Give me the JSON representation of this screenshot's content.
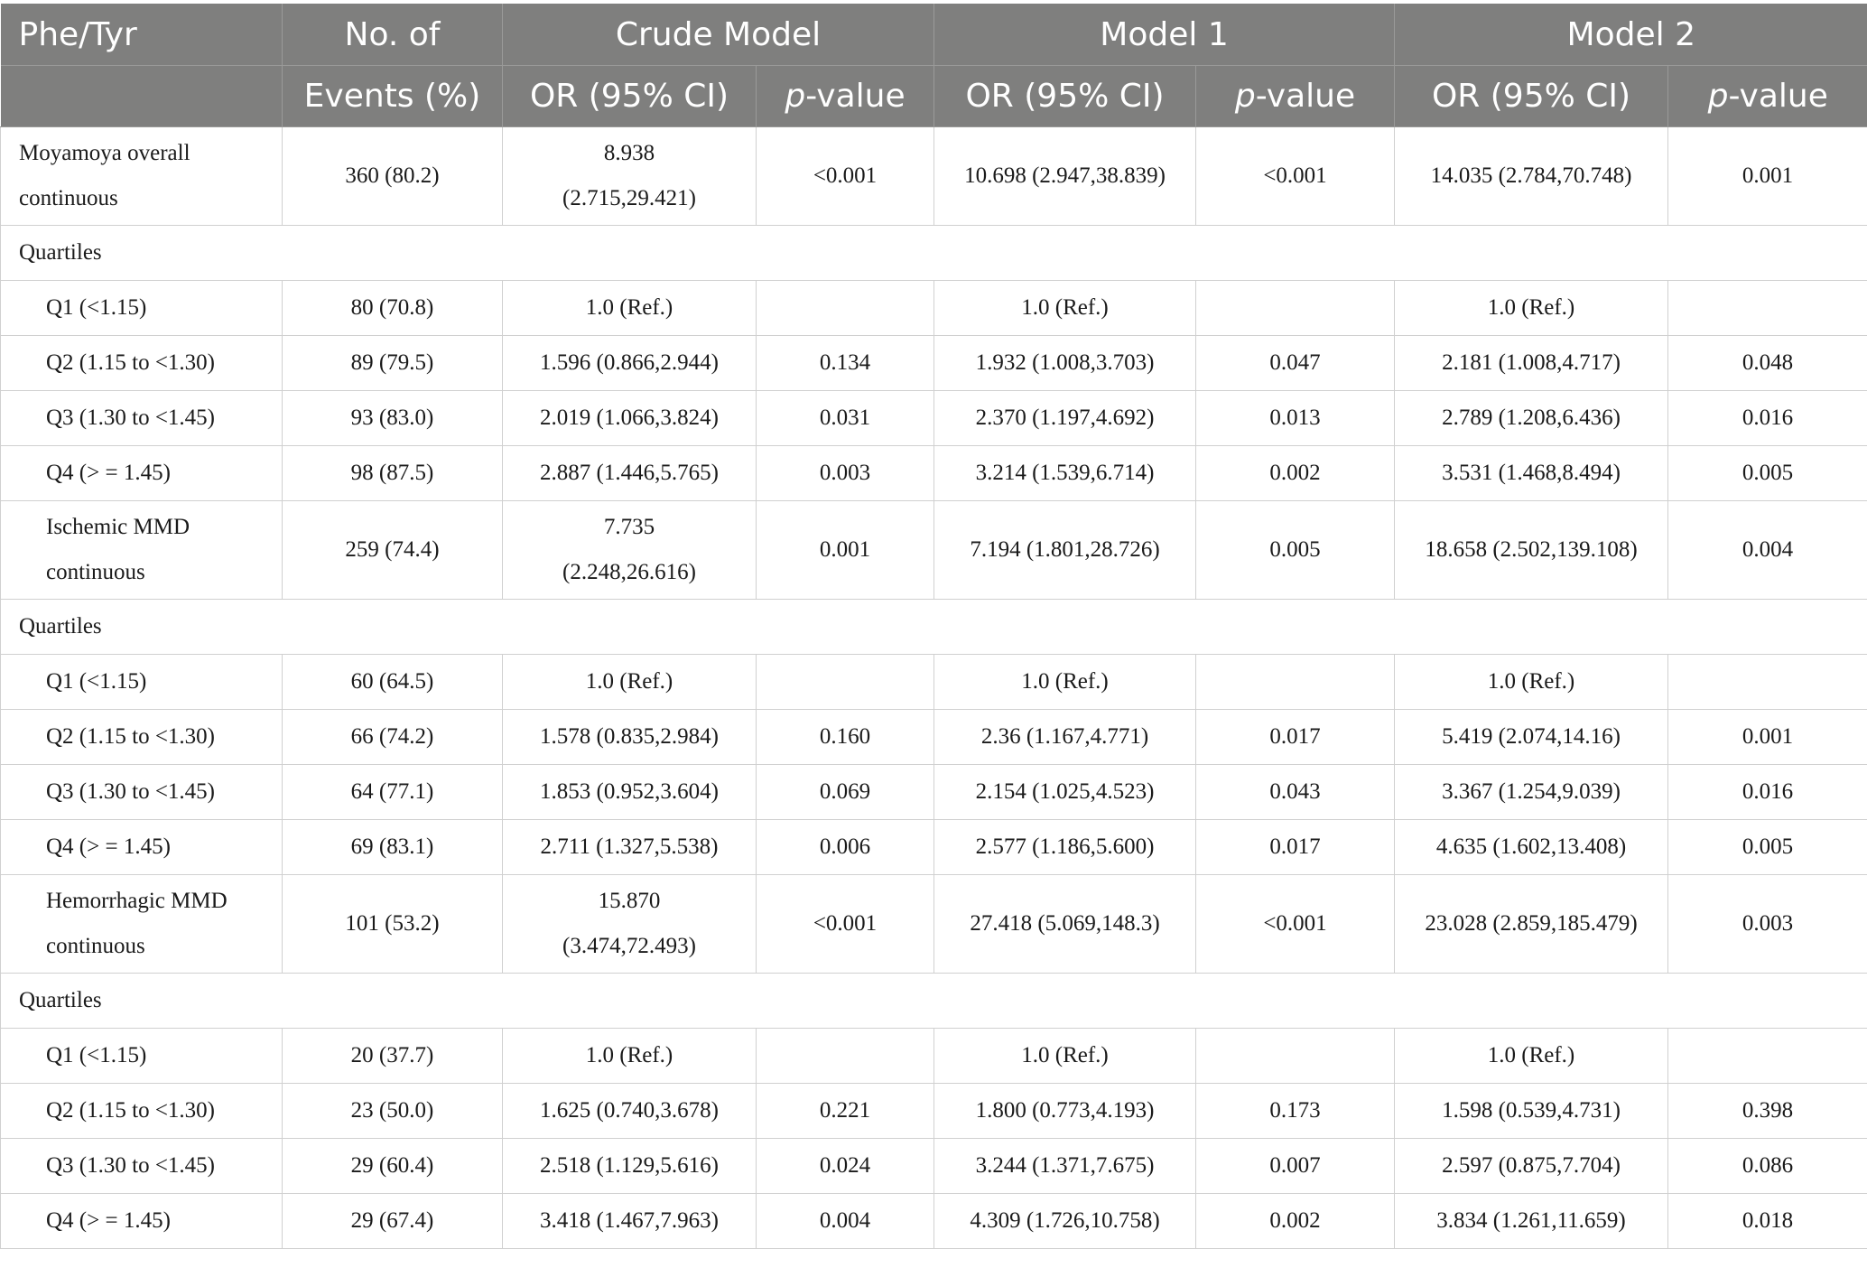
{
  "header": {
    "row1": {
      "col0": "Phe/Tyr",
      "col1": "No. of",
      "crude": "Crude Model",
      "model1": "Model 1",
      "model2": "Model 2"
    },
    "row2": {
      "col1": "Events (%)",
      "or_label": "OR (95% CI)",
      "p_italic": "p",
      "p_suffix": "-value"
    }
  },
  "rows": [
    {
      "type": "data",
      "label": "Moyamoya overall continuous",
      "events": "360 (80.2)",
      "crude_or": "8.938 (2.715,29.421)",
      "crude_p": "<0.001",
      "m1_or": "10.698 (2.947,38.839)",
      "m1_p": "<0.001",
      "m2_or": "14.035 (2.784,70.748)",
      "m2_p": "0.001"
    },
    {
      "type": "section",
      "label": "Quartiles"
    },
    {
      "type": "data",
      "label": "Q1 (<1.15)",
      "events": "80 (70.8)",
      "crude_or": "1.0 (Ref.)",
      "crude_p": "",
      "m1_or": "1.0 (Ref.)",
      "m1_p": "",
      "m2_or": "1.0 (Ref.)",
      "m2_p": ""
    },
    {
      "type": "data",
      "label": "Q2 (1.15 to <1.30)",
      "events": "89 (79.5)",
      "crude_or": "1.596 (0.866,2.944)",
      "crude_p": "0.134",
      "m1_or": "1.932 (1.008,3.703)",
      "m1_p": "0.047",
      "m2_or": "2.181 (1.008,4.717)",
      "m2_p": "0.048"
    },
    {
      "type": "data",
      "label": "Q3 (1.30 to <1.45)",
      "events": "93 (83.0)",
      "crude_or": "2.019 (1.066,3.824)",
      "crude_p": "0.031",
      "m1_or": "2.370 (1.197,4.692)",
      "m1_p": "0.013",
      "m2_or": "2.789 (1.208,6.436)",
      "m2_p": "0.016"
    },
    {
      "type": "data",
      "label": "Q4 (> = 1.45)",
      "events": "98 (87.5)",
      "crude_or": "2.887 (1.446,5.765)",
      "crude_p": "0.003",
      "m1_or": "3.214 (1.539,6.714)",
      "m1_p": "0.002",
      "m2_or": "3.531 (1.468,8.494)",
      "m2_p": "0.005"
    },
    {
      "type": "data",
      "label": "Ischemic MMD continuous",
      "events": "259 (74.4)",
      "crude_or": "7.735 (2.248,26.616)",
      "crude_p": "0.001",
      "m1_or": "7.194 (1.801,28.726)",
      "m1_p": "0.005",
      "m2_or": "18.658 (2.502,139.108)",
      "m2_p": "0.004"
    },
    {
      "type": "section",
      "label": "Quartiles"
    },
    {
      "type": "data",
      "label": "Q1 (<1.15)",
      "events": "60 (64.5)",
      "crude_or": "1.0 (Ref.)",
      "crude_p": "",
      "m1_or": "1.0 (Ref.)",
      "m1_p": "",
      "m2_or": "1.0 (Ref.)",
      "m2_p": ""
    },
    {
      "type": "data",
      "label": "Q2 (1.15 to <1.30)",
      "events": "66 (74.2)",
      "crude_or": "1.578 (0.835,2.984)",
      "crude_p": "0.160",
      "m1_or": "2.36 (1.167,4.771)",
      "m1_p": "0.017",
      "m2_or": "5.419 (2.074,14.16)",
      "m2_p": "0.001"
    },
    {
      "type": "data",
      "label": "Q3 (1.30 to <1.45)",
      "events": "64 (77.1)",
      "crude_or": "1.853 (0.952,3.604)",
      "crude_p": "0.069",
      "m1_or": "2.154 (1.025,4.523)",
      "m1_p": "0.043",
      "m2_or": "3.367 (1.254,9.039)",
      "m2_p": "0.016"
    },
    {
      "type": "data",
      "label": "Q4 (> = 1.45)",
      "events": "69 (83.1)",
      "crude_or": "2.711 (1.327,5.538)",
      "crude_p": "0.006",
      "m1_or": "2.577 (1.186,5.600)",
      "m1_p": "0.017",
      "m2_or": "4.635 (1.602,13.408)",
      "m2_p": "0.005"
    },
    {
      "type": "data",
      "label": "Hemorrhagic MMD continuous",
      "events": "101 (53.2)",
      "crude_or": "15.870 (3.474,72.493)",
      "crude_p": "<0.001",
      "m1_or": "27.418 (5.069,148.3)",
      "m1_p": "<0.001",
      "m2_or": "23.028 (2.859,185.479)",
      "m2_p": "0.003"
    },
    {
      "type": "section",
      "label": "Quartiles"
    },
    {
      "type": "data",
      "label": "Q1 (<1.15)",
      "events": "20 (37.7)",
      "crude_or": "1.0 (Ref.)",
      "crude_p": "",
      "m1_or": "1.0 (Ref.)",
      "m1_p": "",
      "m2_or": "1.0 (Ref.)",
      "m2_p": ""
    },
    {
      "type": "data",
      "label": "Q2 (1.15 to <1.30)",
      "events": "23 (50.0)",
      "crude_or": "1.625 (0.740,3.678)",
      "crude_p": "0.221",
      "m1_or": "1.800 (0.773,4.193)",
      "m1_p": "0.173",
      "m2_or": "1.598 (0.539,4.731)",
      "m2_p": "0.398"
    },
    {
      "type": "data",
      "label": "Q3 (1.30 to <1.45)",
      "events": "29 (60.4)",
      "crude_or": "2.518 (1.129,5.616)",
      "crude_p": "0.024",
      "m1_or": "3.244 (1.371,7.675)",
      "m1_p": "0.007",
      "m2_or": "2.597 (0.875,7.704)",
      "m2_p": "0.086"
    },
    {
      "type": "data",
      "label": "Q4 (> = 1.45)",
      "events": "29 (67.4)",
      "crude_or": "3.418 (1.467,7.963)",
      "crude_p": "0.004",
      "m1_or": "4.309 (1.726,10.758)",
      "m1_p": "0.002",
      "m2_or": "3.834 (1.261,11.659)",
      "m2_p": "0.018"
    }
  ]
}
